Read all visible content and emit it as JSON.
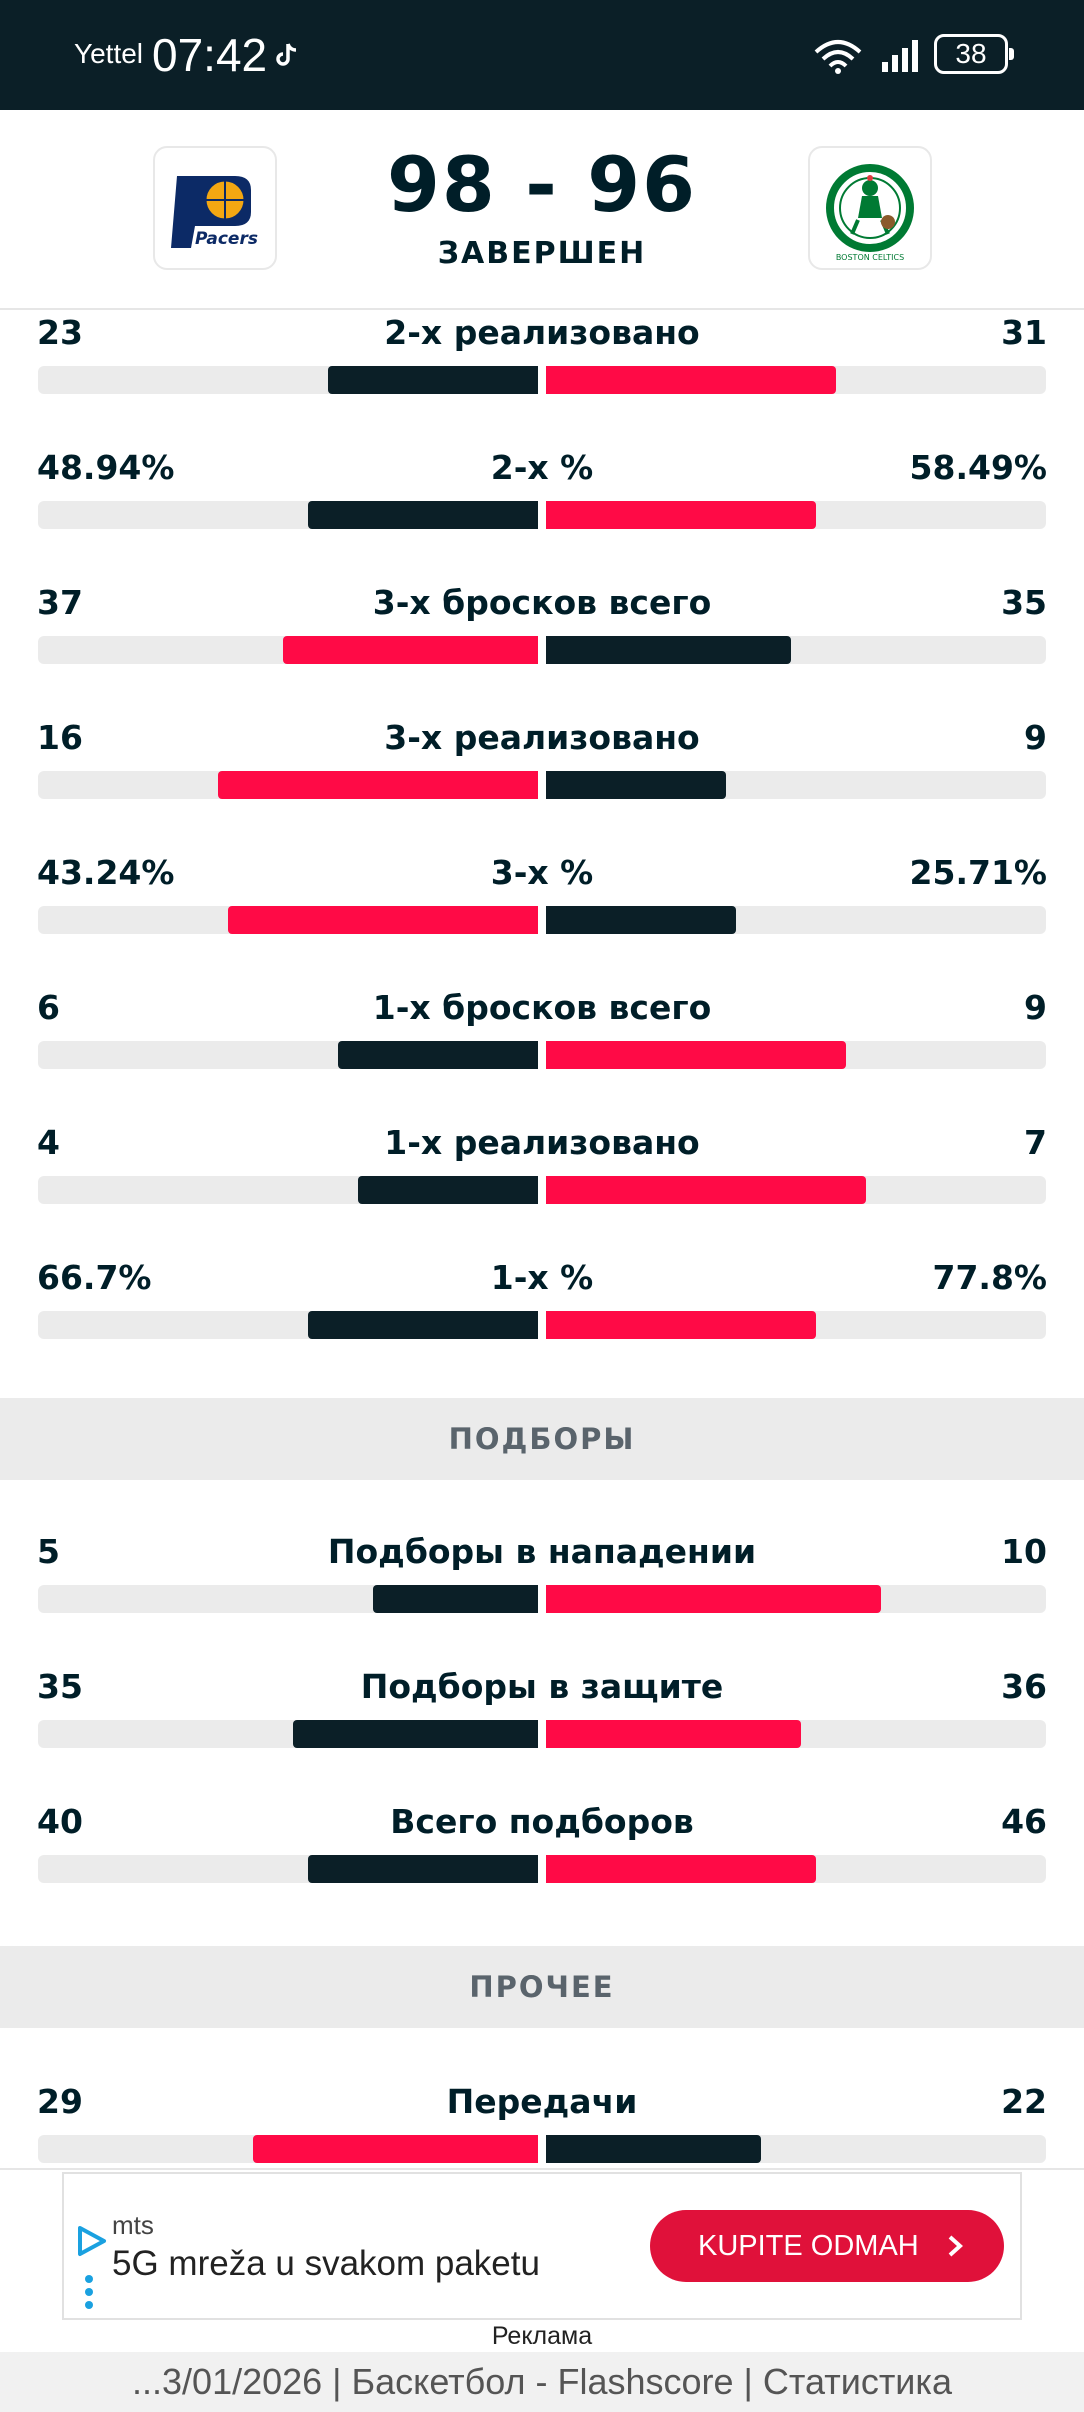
{
  "status_bar": {
    "carrier": "Yettel",
    "time": "07:42",
    "battery": "38"
  },
  "match": {
    "home_logo_text": "Pacers",
    "away_logo_text": "BOSTON CELTICS",
    "score": "98 - 96",
    "status": "ЗАВЕРШЕН"
  },
  "colors": {
    "home": "#0b1f27",
    "accent": "#ff0a46",
    "track": "#ebebeb"
  },
  "stats_top": [
    {
      "name": "2-х реализовано",
      "home": "23",
      "away": "31",
      "home_frac": 0.42,
      "away_frac": 0.58,
      "leader": "away"
    },
    {
      "name": "2-х %",
      "home": "48.94%",
      "away": "58.49%",
      "home_frac": 0.46,
      "away_frac": 0.54,
      "leader": "away"
    },
    {
      "name": "3-х бросков всего",
      "home": "37",
      "away": "35",
      "home_frac": 0.51,
      "away_frac": 0.49,
      "leader": "home"
    },
    {
      "name": "3-х реализовано",
      "home": "16",
      "away": "9",
      "home_frac": 0.64,
      "away_frac": 0.36,
      "leader": "home"
    },
    {
      "name": "3-х %",
      "home": "43.24%",
      "away": "25.71%",
      "home_frac": 0.62,
      "away_frac": 0.38,
      "leader": "home"
    },
    {
      "name": "1-х бросков всего",
      "home": "6",
      "away": "9",
      "home_frac": 0.4,
      "away_frac": 0.6,
      "leader": "away"
    },
    {
      "name": "1-х реализовано",
      "home": "4",
      "away": "7",
      "home_frac": 0.36,
      "away_frac": 0.64,
      "leader": "away"
    },
    {
      "name": "1-х %",
      "home": "66.7%",
      "away": "77.8%",
      "home_frac": 0.46,
      "away_frac": 0.54,
      "leader": "away"
    }
  ],
  "section_rebounds": "ПОДБОРЫ",
  "stats_rebounds": [
    {
      "name": "Подборы в нападении",
      "home": "5",
      "away": "10",
      "home_frac": 0.33,
      "away_frac": 0.67,
      "leader": "away"
    },
    {
      "name": "Подборы в защите",
      "home": "35",
      "away": "36",
      "home_frac": 0.49,
      "away_frac": 0.51,
      "leader": "away"
    },
    {
      "name": "Всего подборов",
      "home": "40",
      "away": "46",
      "home_frac": 0.46,
      "away_frac": 0.54,
      "leader": "away"
    }
  ],
  "section_other": "ПРОЧЕЕ",
  "stats_other": [
    {
      "name": "Передачи",
      "home": "29",
      "away": "22",
      "home_frac": 0.57,
      "away_frac": 0.43,
      "leader": "home"
    }
  ],
  "ad": {
    "brand": "mts",
    "text": "5G mreža u svakom paketu",
    "cta": "KUPITE ODMAH",
    "label": "Реклама"
  },
  "url_bar": "...3/01/2026 | Баскетбол - Flashscore | Статистика"
}
